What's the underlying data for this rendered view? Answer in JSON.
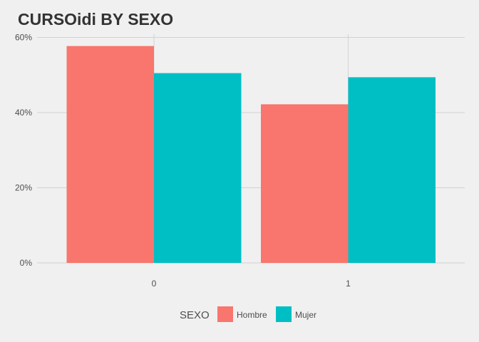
{
  "chart_data": {
    "type": "bar",
    "title": "CURSOidi BY SEXO",
    "xlabel": "",
    "ylabel": "",
    "categories": [
      "0",
      "1"
    ],
    "series": [
      {
        "name": "Hombre",
        "values": [
          0.577,
          0.422
        ],
        "color": "#F8766D"
      },
      {
        "name": "Mujer",
        "values": [
          0.505,
          0.494
        ],
        "color": "#00BFC4"
      }
    ],
    "ylim": [
      0,
      0.6
    ],
    "yticks": [
      0,
      0.2,
      0.4,
      0.6
    ],
    "ytick_labels": [
      "0%",
      "20%",
      "40%",
      "60%"
    ],
    "grid": true,
    "legend": {
      "title": "SEXO",
      "position": "bottom"
    },
    "background": "#f0f0f0",
    "gridline_color": "#d2d2d2"
  }
}
